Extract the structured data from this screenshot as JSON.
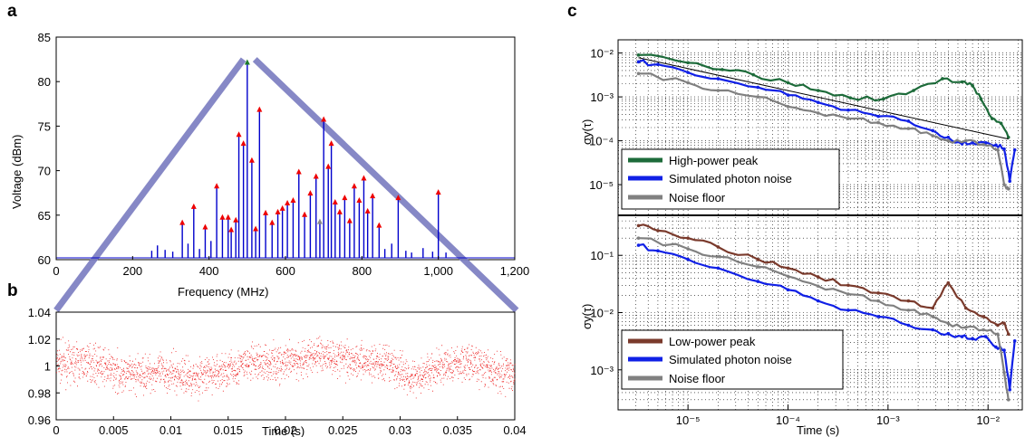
{
  "panels": {
    "a": "a",
    "b": "b",
    "c": "c"
  },
  "chart_data": [
    {
      "id": "a",
      "type": "line",
      "xlabel": "Frequency (MHz)",
      "ylabel": "Voltage (dBm)",
      "xlim": [
        0,
        1200
      ],
      "ylim": [
        60,
        85
      ],
      "xticks": [
        "0",
        "200",
        "400",
        "600",
        "800",
        "1,000",
        "1,200"
      ],
      "xtick_values": [
        0,
        200,
        400,
        600,
        800,
        1000,
        1200
      ],
      "yticks": [
        "60",
        "65",
        "70",
        "75",
        "80",
        "85"
      ],
      "ytick_values": [
        60,
        65,
        70,
        75,
        80,
        85
      ],
      "baseline": 60.2,
      "series": [
        {
          "peaks": [
            {
              "x": 250,
              "y": 61.0
            },
            {
              "x": 265,
              "y": 61.6
            },
            {
              "x": 285,
              "y": 61.1
            },
            {
              "x": 305,
              "y": 60.9
            },
            {
              "x": 330,
              "y": 64.0
            },
            {
              "x": 345,
              "y": 61.8
            },
            {
              "x": 360,
              "y": 65.8
            },
            {
              "x": 375,
              "y": 61.2
            },
            {
              "x": 390,
              "y": 63.5
            },
            {
              "x": 405,
              "y": 62.1
            },
            {
              "x": 420,
              "y": 68.1
            },
            {
              "x": 435,
              "y": 64.6
            },
            {
              "x": 450,
              "y": 64.6
            },
            {
              "x": 458,
              "y": 63.2
            },
            {
              "x": 470,
              "y": 64.3
            },
            {
              "x": 478,
              "y": 73.9
            },
            {
              "x": 490,
              "y": 72.9
            },
            {
              "x": 500,
              "y": 82.0
            },
            {
              "x": 512,
              "y": 71.0
            },
            {
              "x": 522,
              "y": 63.3
            },
            {
              "x": 532,
              "y": 76.7
            },
            {
              "x": 548,
              "y": 65.1
            },
            {
              "x": 565,
              "y": 64.0
            },
            {
              "x": 580,
              "y": 65.2
            },
            {
              "x": 592,
              "y": 65.6
            },
            {
              "x": 605,
              "y": 66.2
            },
            {
              "x": 620,
              "y": 66.5
            },
            {
              "x": 635,
              "y": 69.7
            },
            {
              "x": 650,
              "y": 64.9
            },
            {
              "x": 665,
              "y": 67.3
            },
            {
              "x": 680,
              "y": 69.2
            },
            {
              "x": 690,
              "y": 64.1
            },
            {
              "x": 700,
              "y": 75.6
            },
            {
              "x": 712,
              "y": 70.3
            },
            {
              "x": 720,
              "y": 72.9
            },
            {
              "x": 730,
              "y": 66.3
            },
            {
              "x": 742,
              "y": 65.2
            },
            {
              "x": 755,
              "y": 66.8
            },
            {
              "x": 768,
              "y": 64.2
            },
            {
              "x": 780,
              "y": 68.1
            },
            {
              "x": 793,
              "y": 66.5
            },
            {
              "x": 805,
              "y": 69.0
            },
            {
              "x": 815,
              "y": 65.3
            },
            {
              "x": 828,
              "y": 67.0
            },
            {
              "x": 845,
              "y": 63.7
            },
            {
              "x": 860,
              "y": 61.2
            },
            {
              "x": 878,
              "y": 61.8
            },
            {
              "x": 895,
              "y": 66.8
            },
            {
              "x": 915,
              "y": 61.0
            },
            {
              "x": 930,
              "y": 60.8
            },
            {
              "x": 960,
              "y": 61.3
            },
            {
              "x": 985,
              "y": 60.9
            },
            {
              "x": 1000,
              "y": 67.4
            },
            {
              "x": 1020,
              "y": 60.8
            }
          ],
          "green_marker": {
            "x": 500,
            "y": 82.0
          },
          "gray_marker": {
            "x": 690,
            "y": 64.1
          }
        }
      ],
      "colors": {
        "line": "#0000cc",
        "marker": "#ee0000",
        "peak_marker": "#1a7a2a",
        "zoom": "#7a7cc0"
      }
    },
    {
      "id": "b",
      "type": "scatter",
      "xlabel": "Time (s)",
      "ylabel": "",
      "xlim": [
        0,
        0.04
      ],
      "ylim": [
        0.96,
        1.04
      ],
      "xticks": [
        "0",
        "0.005",
        "0.01",
        "0.015",
        "0.02",
        "0.025",
        "0.03",
        "0.035",
        "0.04"
      ],
      "xtick_values": [
        0,
        0.005,
        0.01,
        0.015,
        0.02,
        0.025,
        0.03,
        0.035,
        0.04
      ],
      "yticks": [
        "0.96",
        "0.98",
        "1",
        "1.02",
        "1.04"
      ],
      "ytick_values": [
        0.96,
        0.98,
        1,
        1.02,
        1.04
      ],
      "trend": [
        {
          "x": 0.0,
          "y": 1.002
        },
        {
          "x": 0.003,
          "y": 1.003
        },
        {
          "x": 0.006,
          "y": 0.993
        },
        {
          "x": 0.009,
          "y": 0.996
        },
        {
          "x": 0.012,
          "y": 0.992
        },
        {
          "x": 0.015,
          "y": 0.997
        },
        {
          "x": 0.017,
          "y": 1.003
        },
        {
          "x": 0.02,
          "y": 1.002
        },
        {
          "x": 0.023,
          "y": 1.009
        },
        {
          "x": 0.026,
          "y": 1.005
        },
        {
          "x": 0.029,
          "y": 1.001
        },
        {
          "x": 0.031,
          "y": 0.992
        },
        {
          "x": 0.034,
          "y": 1.0
        },
        {
          "x": 0.036,
          "y": 1.004
        },
        {
          "x": 0.038,
          "y": 0.996
        },
        {
          "x": 0.04,
          "y": 0.995
        }
      ],
      "spread": 0.012,
      "colors": {
        "points": "#ee2020"
      }
    },
    {
      "id": "c-top",
      "type": "line",
      "xlabel": "",
      "ylabel": "σy(τ)",
      "log_x": true,
      "log_y": true,
      "xlim": [
        2e-06,
        0.022
      ],
      "ylim": [
        2e-06,
        0.02
      ],
      "yticks": [
        "10⁻²",
        "10⁻³",
        "10⁻⁴",
        "10⁻⁵"
      ],
      "ytick_values": [
        0.01,
        0.001,
        0.0001,
        1e-05
      ],
      "legend_position": "bottom-left",
      "series": [
        {
          "name": "High-power peak",
          "color": "#1d6b3a",
          "x": [
            3.2e-06,
            1e-05,
            2.2e-05,
            4.5e-05,
            0.0001,
            0.0002,
            0.00042,
            0.0009,
            0.0018,
            0.0035,
            0.0055,
            0.007,
            0.0085,
            0.011,
            0.0135,
            0.016
          ],
          "y": [
            0.009,
            0.006,
            0.0042,
            0.0032,
            0.0021,
            0.0014,
            0.00095,
            0.0009,
            0.0014,
            0.0026,
            0.0022,
            0.0018,
            0.0009,
            0.00032,
            0.00025,
            0.00012
          ]
        },
        {
          "name": "Simulated photon noise",
          "color": "#1020e6",
          "x": [
            3.2e-06,
            5e-06,
            1e-05,
            2e-05,
            5e-05,
            0.0001,
            0.0002,
            0.0004,
            0.0008,
            0.0016,
            0.0028,
            0.004,
            0.0055,
            0.007,
            0.0095,
            0.012,
            0.0145,
            0.0165,
            0.0185
          ],
          "y": [
            0.0063,
            0.0055,
            0.0036,
            0.0026,
            0.00165,
            0.0011,
            0.00075,
            0.0005,
            0.00036,
            0.00028,
            0.00017,
            0.00012,
            8.5e-05,
            9e-05,
            9e-05,
            8e-05,
            6.5e-05,
            1.2e-05,
            6.2e-05
          ]
        },
        {
          "name": "Noise floor",
          "color": "#808080",
          "x": [
            3.2e-06,
            1e-05,
            2e-05,
            5e-05,
            0.0001,
            0.0002,
            0.0004,
            0.0008,
            0.0016,
            0.0028,
            0.004,
            0.006,
            0.009,
            0.0125,
            0.0145,
            0.016
          ],
          "y": [
            0.0034,
            0.0021,
            0.0014,
            0.001,
            0.0006,
            0.00043,
            0.00032,
            0.00026,
            0.00019,
            0.00013,
            0.0001,
            0.0001,
            8.2e-05,
            6.2e-05,
            1e-05,
            8e-06
          ]
        },
        {
          "name": "",
          "color": "#000000",
          "x": [
            3.2e-06,
            0.016
          ],
          "y": [
            0.0078,
            0.00011
          ]
        }
      ]
    },
    {
      "id": "c-bottom",
      "type": "line",
      "xlabel": "Time (s)",
      "ylabel": "σy(τ)",
      "log_x": true,
      "log_y": true,
      "xlim": [
        2e-06,
        0.022
      ],
      "ylim": [
        0.0002,
        0.5
      ],
      "xticks": [
        "10⁻⁵",
        "10⁻⁴",
        "10⁻³",
        "10⁻²"
      ],
      "xtick_values": [
        1e-05,
        0.0001,
        0.001,
        0.01
      ],
      "yticks": [
        "10⁻¹",
        "10⁻²",
        "10⁻³"
      ],
      "ytick_values": [
        0.1,
        0.01,
        0.001
      ],
      "legend_position": "bottom-left",
      "series": [
        {
          "name": "Low-power peak",
          "color": "#7a3a2c",
          "x": [
            3.2e-06,
            5e-06,
            1e-05,
            2e-05,
            5e-05,
            0.0001,
            0.0002,
            0.0004,
            0.0008,
            0.0016,
            0.0028,
            0.004,
            0.006,
            0.009,
            0.0125,
            0.0145,
            0.016
          ],
          "y": [
            0.33,
            0.27,
            0.2,
            0.14,
            0.085,
            0.06,
            0.042,
            0.03,
            0.022,
            0.016,
            0.012,
            0.033,
            0.012,
            0.0085,
            0.006,
            0.0065,
            0.0042
          ]
        },
        {
          "name": "Simulated photon noise",
          "color": "#1020e6",
          "x": [
            3.2e-06,
            5e-06,
            1e-05,
            2e-05,
            5e-05,
            0.0001,
            0.0002,
            0.0004,
            0.0008,
            0.0016,
            0.0028,
            0.004,
            0.0055,
            0.007,
            0.0095,
            0.012,
            0.0145,
            0.0165,
            0.0185
          ],
          "y": [
            0.15,
            0.12,
            0.085,
            0.06,
            0.035,
            0.025,
            0.016,
            0.011,
            0.0085,
            0.006,
            0.005,
            0.0043,
            0.0038,
            0.0035,
            0.0038,
            0.0025,
            0.0022,
            0.00045,
            0.0032
          ]
        },
        {
          "name": "Noise floor",
          "color": "#808080",
          "x": [
            3.2e-06,
            1e-05,
            2e-05,
            5e-05,
            0.0001,
            0.0002,
            0.0004,
            0.0008,
            0.0016,
            0.0028,
            0.004,
            0.006,
            0.009,
            0.0125,
            0.0145,
            0.016
          ],
          "y": [
            0.2,
            0.13,
            0.095,
            0.063,
            0.043,
            0.029,
            0.021,
            0.016,
            0.011,
            0.0085,
            0.0065,
            0.0055,
            0.005,
            0.0042,
            0.0009,
            0.0003
          ]
        }
      ]
    }
  ]
}
